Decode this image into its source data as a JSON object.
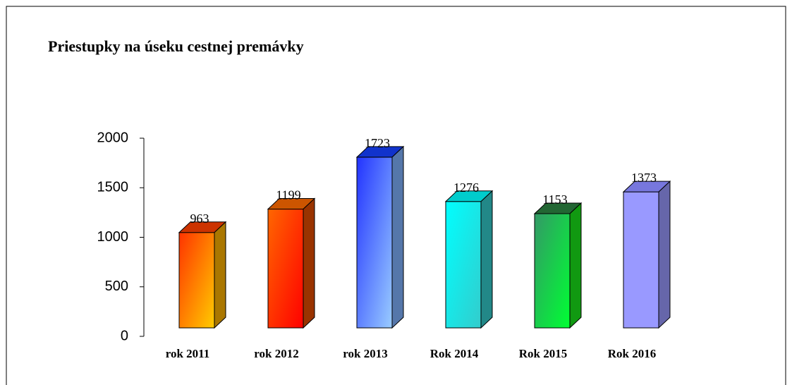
{
  "chart_data": {
    "type": "bar3d",
    "title": "Priestupky na úseku cestnej premávky",
    "categories": [
      "rok 2011",
      "rok 2012",
      "rok 2013",
      "Rok 2014",
      "Rok 2015",
      "Rok 2016"
    ],
    "values": [
      963,
      1199,
      1723,
      1276,
      1153,
      1373
    ],
    "colors": [
      {
        "front": [
          "#ff3300",
          "#ffcc00"
        ],
        "top": "#cc3300",
        "side": "#aa7700"
      },
      {
        "front": [
          "#ff6600",
          "#ff0000"
        ],
        "top": "#cc5500",
        "side": "#993300"
      },
      {
        "front": [
          "#2233ff",
          "#99ccff"
        ],
        "top": "#1133cc",
        "side": "#5577aa"
      },
      {
        "front": [
          "#00ffff",
          "#33cccc"
        ],
        "top": "#00cccc",
        "side": "#228888"
      },
      {
        "front": [
          "#339966",
          "#00ff33"
        ],
        "top": "#226633",
        "side": "#119911"
      },
      {
        "front": [
          "#9999ff",
          "#9999ff"
        ],
        "top": "#7777dd",
        "side": "#6666aa"
      }
    ],
    "ylim": [
      0,
      2000
    ],
    "yticks": [
      0,
      500,
      1000,
      1500,
      2000
    ]
  }
}
